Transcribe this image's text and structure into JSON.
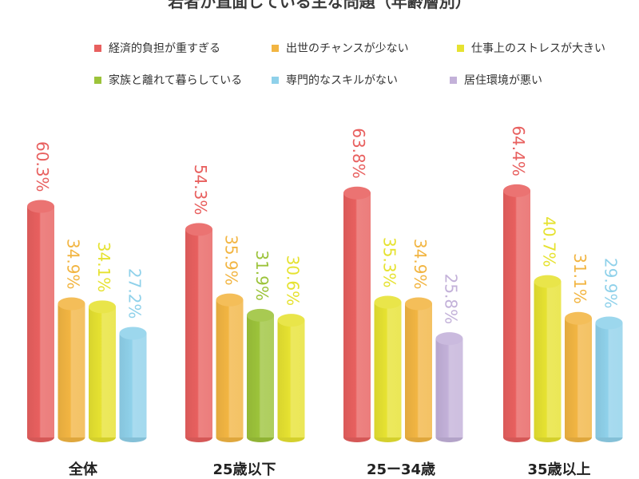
{
  "chart_data": {
    "type": "bar",
    "title": "若者が直面している主な問題（年齢層別）",
    "legend": [
      {
        "name": "経済的負担が重すぎる",
        "color": "#e8605f"
      },
      {
        "name": "出世のチャンスが少ない",
        "color": "#f2b542"
      },
      {
        "name": "仕事上のストレスが大きい",
        "color": "#e6e231"
      },
      {
        "name": "家族と離れて暮らしている",
        "color": "#9cc33a"
      },
      {
        "name": "専門的なスキルがない",
        "color": "#8fd1ea"
      },
      {
        "name": "居住環境が悪い",
        "color": "#c3b1d9"
      }
    ],
    "groups": [
      {
        "label": "全体",
        "bars": [
          {
            "series": "経済的負担が重すぎる",
            "value": 60.3,
            "label": "60.3%"
          },
          {
            "series": "出世のチャンスが少ない",
            "value": 34.9,
            "label": "34.9%"
          },
          {
            "series": "仕事上のストレスが大きい",
            "value": 34.1,
            "label": "34.1%"
          },
          {
            "series": "専門的なスキルがない",
            "value": 27.2,
            "label": "27.2%"
          }
        ]
      },
      {
        "label": "25歳以下",
        "bars": [
          {
            "series": "経済的負担が重すぎる",
            "value": 54.3,
            "label": "54.3%"
          },
          {
            "series": "出世のチャンスが少ない",
            "value": 35.9,
            "label": "35.9%"
          },
          {
            "series": "家族と離れて暮らしている",
            "value": 31.9,
            "label": "31.9%"
          },
          {
            "series": "仕事上のストレスが大きい",
            "value": 30.6,
            "label": "30.6%"
          }
        ]
      },
      {
        "label": "25ー34歳",
        "bars": [
          {
            "series": "経済的負担が重すぎる",
            "value": 63.8,
            "label": "63.8%"
          },
          {
            "series": "仕事上のストレスが大きい",
            "value": 35.3,
            "label": "35.3%"
          },
          {
            "series": "出世のチャンスが少ない",
            "value": 34.9,
            "label": "34.9%"
          },
          {
            "series": "居住環境が悪い",
            "value": 25.8,
            "label": "25.8%"
          }
        ]
      },
      {
        "label": "35歳以上",
        "bars": [
          {
            "series": "経済的負担が重すぎる",
            "value": 64.4,
            "label": "64.4%"
          },
          {
            "series": "仕事上のストレスが大きい",
            "value": 40.7,
            "label": "40.7%"
          },
          {
            "series": "出世のチャンスが少ない",
            "value": 31.1,
            "label": "31.1%"
          },
          {
            "series": "専門的なスキルがない",
            "value": 29.9,
            "label": "29.9%"
          }
        ]
      }
    ],
    "legend_position": "top",
    "grid": false,
    "ylim": [
      0,
      70
    ]
  }
}
